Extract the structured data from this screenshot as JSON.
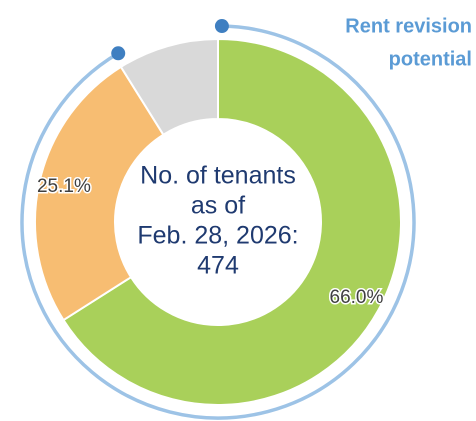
{
  "chart_data": {
    "type": "donut",
    "values": [
      66.0,
      25.1,
      8.9
    ],
    "value_labels": [
      "66.0%",
      "25.1%",
      null
    ],
    "colors": [
      "#a9d05a",
      "#f7bd72",
      "#d9d9d9"
    ],
    "center_text": [
      "No. of tenants",
      "as of",
      "Feb. 28, 2026:",
      "474"
    ],
    "annotation": [
      "Rent revision",
      "potential"
    ]
  }
}
